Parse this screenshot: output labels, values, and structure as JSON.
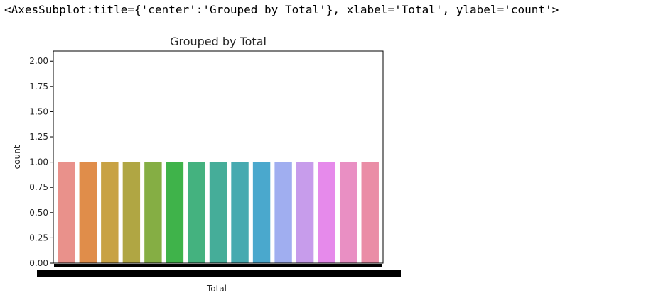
{
  "output": {
    "repr_text": "<AxesSubplot:title={'center':'Grouped by Total'}, xlabel='Total', ylabel='count'>"
  },
  "chart_data": {
    "type": "bar",
    "title": "Grouped by Total",
    "xlabel": "Total",
    "ylabel": "count",
    "ylim": [
      0,
      2.1
    ],
    "yticks": [
      "0.00",
      "0.25",
      "0.50",
      "0.75",
      "1.00",
      "1.25",
      "1.50",
      "1.75",
      "2.00"
    ],
    "ytick_values": [
      0,
      0.25,
      0.5,
      0.75,
      1.0,
      1.25,
      1.5,
      1.75,
      2.0
    ],
    "grid": false,
    "values": [
      1,
      1,
      1,
      1,
      1,
      1,
      1,
      1,
      1,
      1,
      1,
      1,
      1,
      1,
      1
    ],
    "colors": [
      "#e9918b",
      "#e08d4a",
      "#c8a244",
      "#b0a643",
      "#85ae44",
      "#3fb34a",
      "#44b27f",
      "#45ad99",
      "#46aab0",
      "#4aa8cd",
      "#a0aef0",
      "#c79ceb",
      "#e68aeb",
      "#e98fc3",
      "#ea8da6"
    ]
  }
}
